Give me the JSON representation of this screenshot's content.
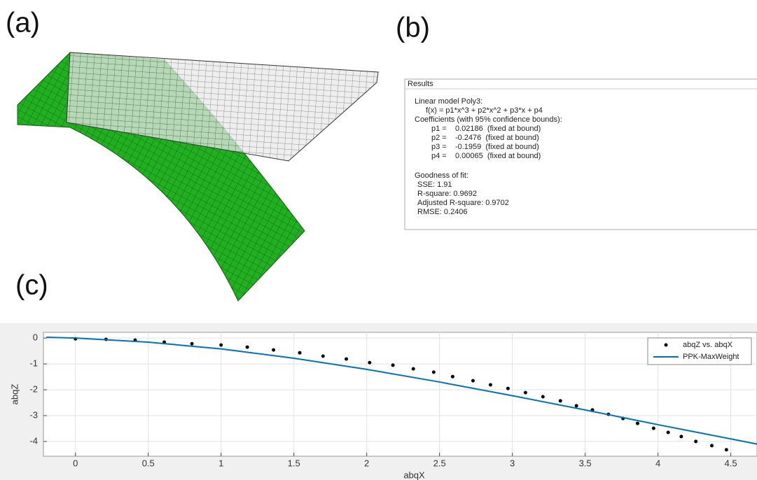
{
  "panels": {
    "a": "(a)",
    "b": "(b)",
    "c": "(c)"
  },
  "results": {
    "title": "Results",
    "lines": [
      "Linear model Poly3:",
      "f(x) = p1*x^3 + p2*x^2 + p3*x + p4",
      "Coefficients (with 95% confidence bounds):",
      "p1 =    0.02186  (fixed at bound)",
      "p2 =    -0.2476  (fixed at bound)",
      "p3 =    -0.1959  (fixed at bound)",
      "p4 =    0.00065  (fixed at bound)",
      "Goodness of fit:",
      "SSE: 1.91",
      "R-square: 0.9692",
      "Adjusted R-square: 0.9702",
      "RMSE: 0.2406"
    ]
  },
  "chart_data": {
    "type": "scatter",
    "x_label": "abqX",
    "y_label": "abqZ",
    "xlim": [
      -0.22,
      4.68
    ],
    "ylim": [
      -4.57,
      0.22
    ],
    "xticks": [
      0,
      0.5,
      1,
      1.5,
      2,
      2.5,
      3,
      3.5,
      4,
      4.5
    ],
    "yticks": [
      -4,
      -3,
      -2,
      -1,
      0
    ],
    "grid": true,
    "legend": "upper right",
    "series": [
      {
        "name": "abqZ vs. abqX",
        "color": "#000000",
        "mode": "markers",
        "x": [
          0,
          0.21,
          0.41,
          0.61,
          0.8,
          1.0,
          1.18,
          1.36,
          1.54,
          1.7,
          1.86,
          2.02,
          2.18,
          2.32,
          2.46,
          2.59,
          2.73,
          2.85,
          2.97,
          3.09,
          3.21,
          3.33,
          3.44,
          3.55,
          3.66,
          3.76,
          3.86,
          3.97,
          4.07,
          4.16,
          4.26,
          4.37,
          4.47
        ],
        "values": [
          -0.03,
          -0.05,
          -0.08,
          -0.16,
          -0.22,
          -0.27,
          -0.35,
          -0.46,
          -0.57,
          -0.7,
          -0.81,
          -0.95,
          -1.05,
          -1.19,
          -1.32,
          -1.49,
          -1.65,
          -1.81,
          -1.95,
          -2.11,
          -2.27,
          -2.43,
          -2.62,
          -2.78,
          -2.95,
          -3.11,
          -3.3,
          -3.49,
          -3.65,
          -3.81,
          -4.0,
          -4.16,
          -4.32
        ]
      },
      {
        "name": "PPK-MaxWeight",
        "color": "#0072bd",
        "mode": "line",
        "x": [
          -0.2,
          0,
          0.5,
          1,
          1.5,
          2,
          2.5,
          3,
          3.5,
          4,
          4.5,
          4.68
        ],
        "values": [
          0.03,
          0.0,
          -0.16,
          -0.42,
          -0.78,
          -1.21,
          -1.7,
          -2.23,
          -2.78,
          -3.35,
          -3.9,
          -4.1
        ]
      }
    ]
  }
}
